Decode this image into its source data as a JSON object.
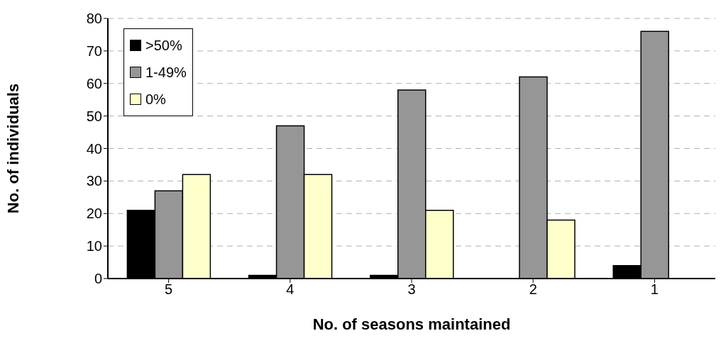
{
  "chart_data": {
    "type": "bar",
    "xlabel": "No. of seasons maintained",
    "ylabel": "No. of individuals",
    "categories": [
      "5",
      "4",
      "3",
      "2",
      "1"
    ],
    "series": [
      {
        "name": ">50%",
        "color": "#000000",
        "values": [
          21,
          1,
          1,
          0,
          4
        ]
      },
      {
        "name": "1-49%",
        "color": "#969696",
        "values": [
          27,
          47,
          58,
          62,
          76
        ]
      },
      {
        "name": "0%",
        "color": "#ffffcc",
        "values": [
          32,
          32,
          21,
          18,
          0
        ]
      }
    ],
    "ylim": [
      0,
      80
    ],
    "yticks": [
      0,
      10,
      20,
      30,
      40,
      50,
      60,
      70,
      80
    ],
    "grid": "y",
    "legend": "top left"
  }
}
